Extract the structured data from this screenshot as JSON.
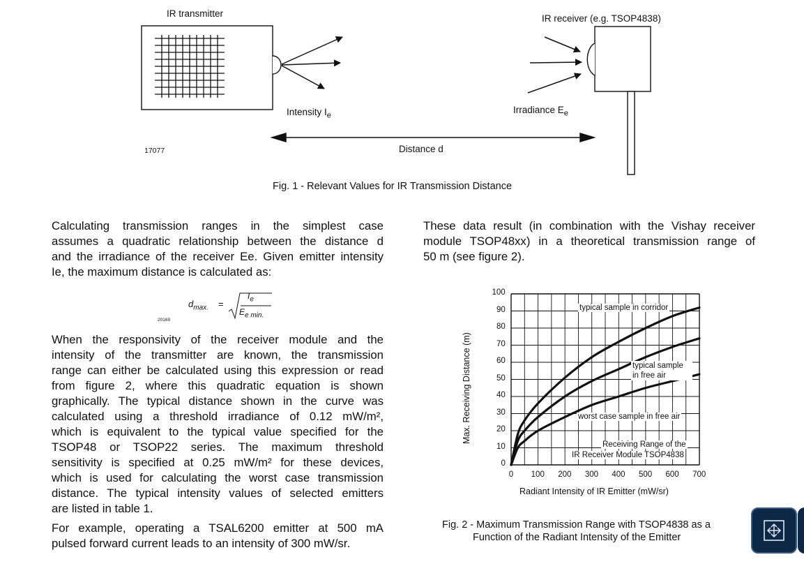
{
  "fig1": {
    "transmitter_label": "IR transmitter",
    "receiver_label": "IR receiver (e.g. TSOP4838)",
    "intensity_label": "Intensity I",
    "intensity_sub": "e",
    "irradiance_label": "Irradiance E",
    "irradiance_sub": "e",
    "distance_label": "Distance  d",
    "code": "17077",
    "caption": "Fig. 1 - Relevant Values for IR Transmission Distance"
  },
  "left": {
    "para1": [
      "Calculating transmission ranges in the simplest case",
      "assumes a quadratic relationship between the distance d",
      "and the irradiance of the receiver Ee. Given emitter intensity",
      "Ie, the maximum distance is calculated as:"
    ],
    "formula": {
      "lhs": "d",
      "lhs_sub": "max.",
      "eq": "=",
      "num": "I",
      "num_sub": "e",
      "den": "E",
      "den_sub": "e min.",
      "code": "20169"
    },
    "para2": [
      "When the responsivity of the receiver module and the",
      "intensity of the transmitter are known, the transmission",
      "range can either be calculated using this expression or read",
      "from figure 2, where this quadratic equation is shown",
      "graphically. The typical distance shown in the curve was",
      "calculated using a threshold irradiance of 0.12 mW/m², ",
      "which is equivalent to the typical value specified for the",
      "TSOP48 or TSOP22 series. The maximum threshold",
      "sensitivity is specified at 0.25 mW/m² for these devices,",
      "which is used for calculating the worst case transmission",
      "distance. The typical intensity values of selected emitters",
      "are listed in table 1."
    ],
    "para3": [
      "For example, operating a TSAL6200 emitter at 500 mA",
      "pulsed forward current leads to an intensity of 300 mW/sr."
    ]
  },
  "right": {
    "para1": [
      "These data result (in combination with the Vishay receiver",
      "module TSOP48xx) in a theoretical transmission range of",
      "50 m (see figure 2)."
    ],
    "caption_line1": "Fig. 2 - Maximum Transmission Range with TSOP4838 as a",
    "caption_line2": "Function of the Radiant Intensity of the Emitter"
  },
  "chart_data": {
    "type": "line",
    "xlabel": "Radiant Intensity of IR Emitter (mW/sr)",
    "ylabel": "Max. Receiving Distance (m)",
    "xlim": [
      0,
      700
    ],
    "ylim": [
      0,
      100
    ],
    "x_ticks": [
      0,
      100,
      200,
      300,
      400,
      500,
      600,
      700
    ],
    "y_ticks": [
      0,
      10,
      20,
      30,
      40,
      50,
      60,
      70,
      80,
      90,
      100
    ],
    "grid": true,
    "series": [
      {
        "name": "typical sample in corridor",
        "x": [
          0,
          25,
          50,
          100,
          200,
          300,
          400,
          500,
          600,
          700
        ],
        "y": [
          0,
          18,
          26,
          36,
          51,
          63,
          72,
          80,
          87,
          92
        ]
      },
      {
        "name": "typical sample in free air",
        "x": [
          0,
          25,
          50,
          100,
          200,
          300,
          400,
          500,
          600,
          700
        ],
        "y": [
          0,
          14,
          20,
          28,
          40,
          49,
          56,
          63,
          69,
          74
        ]
      },
      {
        "name": "worst case sample in free air",
        "x": [
          0,
          25,
          50,
          100,
          200,
          300,
          400,
          500,
          600,
          700
        ],
        "y": [
          0,
          10,
          14,
          20,
          28,
          35,
          40,
          45,
          49,
          53
        ]
      }
    ],
    "annotations": [
      "Receiving Range of the",
      "IR Receiver Module TSOP4838"
    ]
  },
  "toolbar": {
    "icon": "fullscreen-icon"
  }
}
